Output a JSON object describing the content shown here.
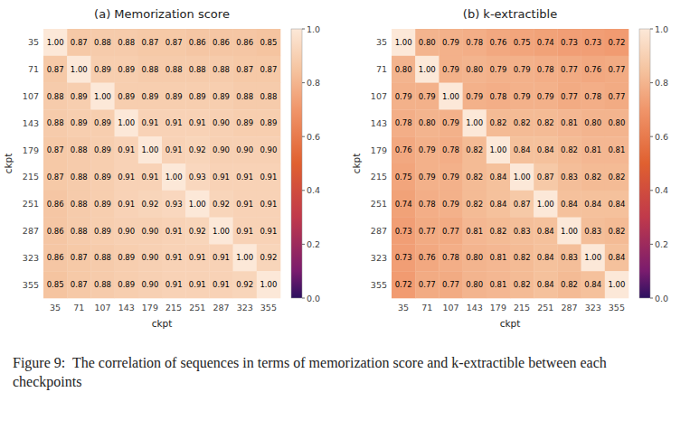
{
  "chart_data": [
    {
      "type": "heatmap",
      "title": "(a) Memorization score",
      "x_label": "ckpt",
      "y_label": "ckpt",
      "x_categories": [
        35,
        71,
        107,
        143,
        179,
        215,
        251,
        287,
        323,
        355
      ],
      "y_categories": [
        35,
        71,
        107,
        143,
        179,
        215,
        251,
        287,
        323,
        355
      ],
      "values": [
        [
          1.0,
          0.87,
          0.88,
          0.88,
          0.87,
          0.87,
          0.86,
          0.86,
          0.86,
          0.85
        ],
        [
          0.87,
          1.0,
          0.89,
          0.89,
          0.88,
          0.88,
          0.88,
          0.88,
          0.87,
          0.87
        ],
        [
          0.88,
          0.89,
          1.0,
          0.89,
          0.89,
          0.89,
          0.89,
          0.89,
          0.88,
          0.88
        ],
        [
          0.88,
          0.89,
          0.89,
          1.0,
          0.91,
          0.91,
          0.91,
          0.9,
          0.89,
          0.89
        ],
        [
          0.87,
          0.88,
          0.89,
          0.91,
          1.0,
          0.91,
          0.92,
          0.9,
          0.9,
          0.9
        ],
        [
          0.87,
          0.88,
          0.89,
          0.91,
          0.91,
          1.0,
          0.93,
          0.91,
          0.91,
          0.91
        ],
        [
          0.86,
          0.88,
          0.89,
          0.91,
          0.92,
          0.93,
          1.0,
          0.92,
          0.91,
          0.91
        ],
        [
          0.86,
          0.88,
          0.89,
          0.9,
          0.9,
          0.91,
          0.92,
          1.0,
          0.91,
          0.91
        ],
        [
          0.86,
          0.87,
          0.88,
          0.89,
          0.9,
          0.91,
          0.91,
          0.91,
          1.0,
          0.92
        ],
        [
          0.85,
          0.87,
          0.88,
          0.89,
          0.9,
          0.91,
          0.91,
          0.91,
          0.92,
          1.0
        ]
      ],
      "value_labels": [
        [
          "1.00",
          "0.87",
          "0.88",
          "0.88",
          "0.87",
          "0.87",
          "0.86",
          "0.86",
          "0.86",
          "0.85"
        ],
        [
          "0.87",
          "1.00",
          "0.89",
          "0.89",
          "0.88",
          "0.88",
          "0.88",
          "0.88",
          "0.87",
          "0.87"
        ],
        [
          "0.88",
          "0.89",
          "1.00",
          "0.89",
          "0.89",
          "0.89",
          "0.89",
          "0.89",
          "0.88",
          "0.88"
        ],
        [
          "0.88",
          "0.89",
          "0.89",
          "1.00",
          "0.91",
          "0.91",
          "0.91",
          "0.90",
          "0.89",
          "0.89"
        ],
        [
          "0.87",
          "0.88",
          "0.89",
          "0.91",
          "1.00",
          "0.91",
          "0.92",
          "0.90",
          "0.90",
          "0.90"
        ],
        [
          "0.87",
          "0.88",
          "0.89",
          "0.91",
          "0.91",
          "1.00",
          "0.93",
          "0.91",
          "0.91",
          "0.91"
        ],
        [
          "0.86",
          "0.88",
          "0.89",
          "0.91",
          "0.92",
          "0.93",
          "1.00",
          "0.92",
          "0.91",
          "0.91"
        ],
        [
          "0.86",
          "0.88",
          "0.89",
          "0.90",
          "0.90",
          "0.91",
          "0.92",
          "1.00",
          "0.91",
          "0.91"
        ],
        [
          "0.86",
          "0.87",
          "0.88",
          "0.89",
          "0.90",
          "0.91",
          "0.91",
          "0.91",
          "1.00",
          "0.92"
        ],
        [
          "0.85",
          "0.87",
          "0.88",
          "0.89",
          "0.90",
          "0.91",
          "0.91",
          "0.91",
          "0.92",
          "1.00"
        ]
      ],
      "data_labels": true,
      "colorbar": {
        "range": [
          0.0,
          1.0
        ],
        "ticks": [
          {
            "value": 0.0,
            "label": "0.0"
          },
          0.2,
          0.4,
          0.6,
          0.8,
          {
            "value": 1.0,
            "label": "1.0"
          }
        ]
      },
      "colormap": [
        {
          "value": 0.0,
          "color": "#2d1160"
        },
        {
          "value": 0.1,
          "color": "#7a1c6e"
        },
        {
          "value": 0.3,
          "color": "#c0394b"
        },
        {
          "value": 0.5,
          "color": "#e06030"
        },
        {
          "value": 0.7,
          "color": "#f0956a"
        },
        {
          "value": 0.85,
          "color": "#f5c4a0"
        },
        {
          "value": 1.0,
          "color": "#fce8d8"
        }
      ]
    },
    {
      "type": "heatmap",
      "title": "(b) k-extractible",
      "x_label": "ckpt",
      "y_label": "ckpt",
      "x_categories": [
        35,
        71,
        107,
        143,
        179,
        215,
        251,
        287,
        323,
        355
      ],
      "y_categories": [
        35,
        71,
        107,
        143,
        179,
        215,
        251,
        287,
        323,
        355
      ],
      "values": [
        [
          1.0,
          0.8,
          0.79,
          0.78,
          0.76,
          0.75,
          0.74,
          0.73,
          0.73,
          0.72
        ],
        [
          0.8,
          1.0,
          0.79,
          0.8,
          0.79,
          0.79,
          0.78,
          0.77,
          0.76,
          0.77
        ],
        [
          0.79,
          0.79,
          1.0,
          0.79,
          0.78,
          0.79,
          0.79,
          0.77,
          0.78,
          0.77
        ],
        [
          0.78,
          0.8,
          0.79,
          1.0,
          0.82,
          0.82,
          0.82,
          0.81,
          0.8,
          0.8
        ],
        [
          0.76,
          0.79,
          0.78,
          0.82,
          1.0,
          0.84,
          0.84,
          0.82,
          0.81,
          0.81
        ],
        [
          0.75,
          0.79,
          0.79,
          0.82,
          0.84,
          1.0,
          0.87,
          0.83,
          0.82,
          0.82
        ],
        [
          0.74,
          0.78,
          0.79,
          0.82,
          0.84,
          0.87,
          1.0,
          0.84,
          0.84,
          0.84
        ],
        [
          0.73,
          0.77,
          0.77,
          0.81,
          0.82,
          0.83,
          0.84,
          1.0,
          0.83,
          0.82
        ],
        [
          0.73,
          0.76,
          0.78,
          0.8,
          0.81,
          0.82,
          0.84,
          0.83,
          1.0,
          0.84
        ],
        [
          0.72,
          0.77,
          0.77,
          0.8,
          0.81,
          0.82,
          0.84,
          0.82,
          0.84,
          1.0
        ]
      ],
      "value_labels": [
        [
          "1.00",
          "0.80",
          "0.79",
          "0.78",
          "0.76",
          "0.75",
          "0.74",
          "0.73",
          "0.73",
          "0.72"
        ],
        [
          "0.80",
          "1.00",
          "0.79",
          "0.80",
          "0.79",
          "0.79",
          "0.78",
          "0.77",
          "0.76",
          "0.77"
        ],
        [
          "0.79",
          "0.79",
          "1.00",
          "0.79",
          "0.78",
          "0.79",
          "0.79",
          "0.77",
          "0.78",
          "0.77"
        ],
        [
          "0.78",
          "0.80",
          "0.79",
          "1.00",
          "0.82",
          "0.82",
          "0.82",
          "0.81",
          "0.80",
          "0.80"
        ],
        [
          "0.76",
          "0.79",
          "0.78",
          "0.82",
          "1.00",
          "0.84",
          "0.84",
          "0.82",
          "0.81",
          "0.81"
        ],
        [
          "0.75",
          "0.79",
          "0.79",
          "0.82",
          "0.84",
          "1.00",
          "0.87",
          "0.83",
          "0.82",
          "0.82"
        ],
        [
          "0.74",
          "0.78",
          "0.79",
          "0.82",
          "0.84",
          "0.87",
          "1.00",
          "0.84",
          "0.84",
          "0.84"
        ],
        [
          "0.73",
          "0.77",
          "0.77",
          "0.81",
          "0.82",
          "0.83",
          "0.84",
          "1.00",
          "0.83",
          "0.82"
        ],
        [
          "0.73",
          "0.76",
          "0.78",
          "0.80",
          "0.81",
          "0.82",
          "0.84",
          "0.83",
          "1.00",
          "0.84"
        ],
        [
          "0.72",
          "0.77",
          "0.77",
          "0.80",
          "0.81",
          "0.82",
          "0.84",
          "0.82",
          "0.84",
          "1.00"
        ]
      ],
      "data_labels": true,
      "colorbar": {
        "range": [
          0.0,
          1.0
        ],
        "ticks": [
          {
            "value": 0.0,
            "label": "0.0"
          },
          0.2,
          0.4,
          0.6,
          0.8,
          {
            "value": 1.0,
            "label": "1.0"
          }
        ]
      },
      "colormap": [
        {
          "value": 0.0,
          "color": "#2d1160"
        },
        {
          "value": 0.1,
          "color": "#7a1c6e"
        },
        {
          "value": 0.3,
          "color": "#c0394b"
        },
        {
          "value": 0.5,
          "color": "#e06030"
        },
        {
          "value": 0.7,
          "color": "#f0956a"
        },
        {
          "value": 0.85,
          "color": "#f5c4a0"
        },
        {
          "value": 1.0,
          "color": "#fce8d8"
        }
      ]
    }
  ],
  "caption": "Figure 9:  The correlation of sequences in terms of memorization score and k-extractible between each checkpoints"
}
